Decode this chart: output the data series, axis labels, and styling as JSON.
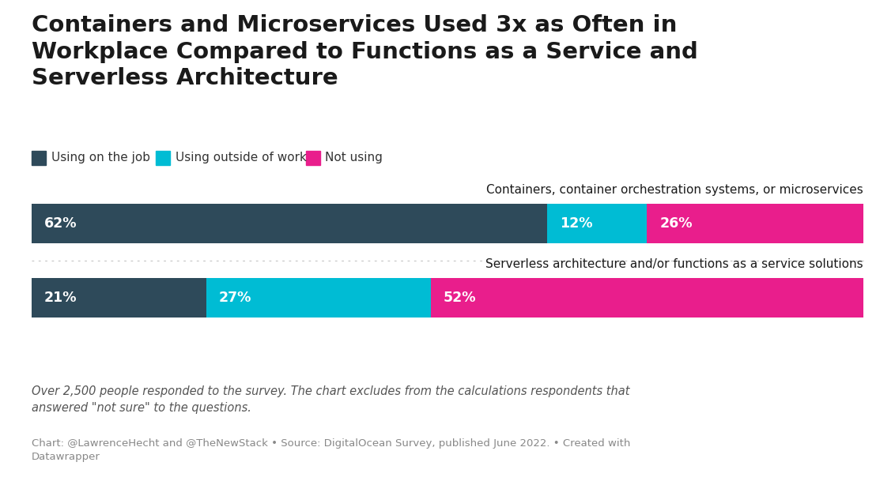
{
  "title_line1": "Containers and Microservices Used 3x as Often in",
  "title_line2": "Workplace Compared to Functions as a Service and",
  "title_line3": "Serverless Architecture",
  "categories": [
    "Containers, container orchestration systems, or microservices",
    "Serverless architecture and/or functions as a service solutions"
  ],
  "data": [
    [
      62,
      12,
      26
    ],
    [
      21,
      27,
      52
    ]
  ],
  "colors": [
    "#2e4a5a",
    "#00bcd4",
    "#e91e8c"
  ],
  "legend_labels": [
    "Using on the job",
    "Using outside of work",
    "Not using"
  ],
  "legend_colors": [
    "#2e4a5a",
    "#00bcd4",
    "#e91e8c"
  ],
  "footnote1": "Over 2,500 people responded to the survey. The chart excludes from the calculations respondents that\nanswered \"not sure\" to the questions.",
  "footnote2": "Chart: @LawrenceHecht and @TheNewStack • Source: DigitalOcean Survey, published June 2022. • Created with\nDatawrapper",
  "bg": "#ffffff",
  "text_white": "#ffffff",
  "text_dark": "#1a1a1a",
  "text_gray": "#888888",
  "text_footnote": "#555555"
}
